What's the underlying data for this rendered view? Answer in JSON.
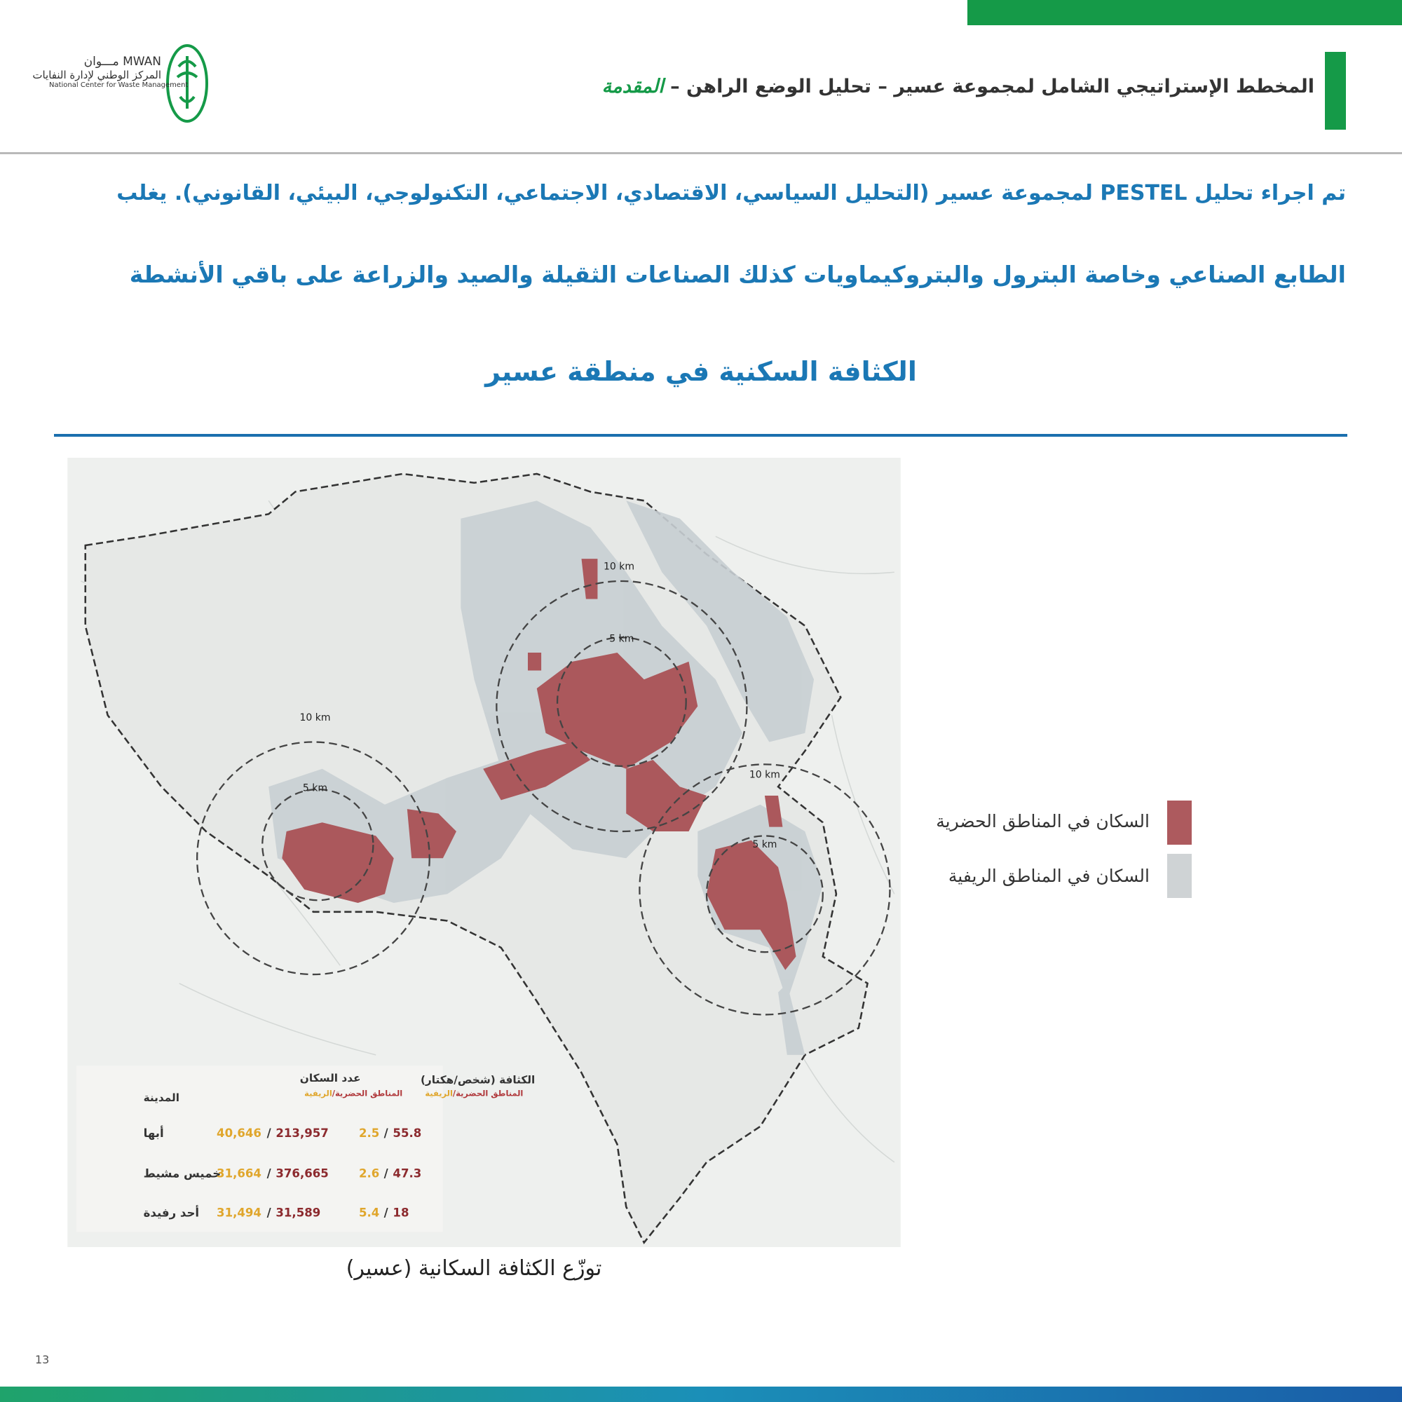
{
  "header": {
    "title": "المخطط الإستراتيجي الشامل لمجموعة عسير – تحليل الوضع الراهن –",
    "section": "المقدمة"
  },
  "logo": {
    "name_en": "MWAN",
    "name_ar": "مـــوان",
    "org_ar": "المركز الوطني لإدارة النفايات",
    "org_en": "National Center for Waste Management"
  },
  "body": {
    "lines": [
      "تم اجراء تحليل PESTEL لمجموعة عسير (التحليل السياسي، الاقتصادي، الاجتماعي، التكنولوجي، البيئي، القانوني). يغلب",
      "الطابع الصناعي وخاصة البترول والبتروكيماويات كذلك الصناعات الثقيلة والصيد والزراعة على باقي الأنشطة"
    ],
    "heading": "الكثافة السكنية في منطقة عسير"
  },
  "map": {
    "circle_labels": [
      "10 km",
      "5 km",
      "10 km",
      "5 km",
      "10 km",
      "5 km"
    ],
    "table": {
      "headers": {
        "city": "المدينة",
        "population": "عدد السكان",
        "density": "الكثافة (شخص/هكتار)",
        "urban": "المناطق الحضرية",
        "rural": "الريفية"
      },
      "rows": [
        {
          "city": "أبها",
          "pop_rural": "40,646",
          "pop_urban": "213,957",
          "dens_rural": "2.5",
          "dens_urban": "55.8"
        },
        {
          "city": "خميس مشيط",
          "pop_rural": "31,664",
          "pop_urban": "376,665",
          "dens_rural": "2.6",
          "dens_urban": "47.3"
        },
        {
          "city": "أحد رفيدة",
          "pop_rural": "31,494",
          "pop_urban": "31,589",
          "dens_rural": "5.4",
          "dens_urban": "18"
        }
      ]
    }
  },
  "legend": [
    {
      "label": "السكان في المناطق الحضرية",
      "color": "#ad5a5e"
    },
    {
      "label": "السكان في المناطق الريفية",
      "color": "#cfd3d5"
    }
  ],
  "caption": "توزّع الكثافة السكانية (عسير)",
  "page_number": "13"
}
